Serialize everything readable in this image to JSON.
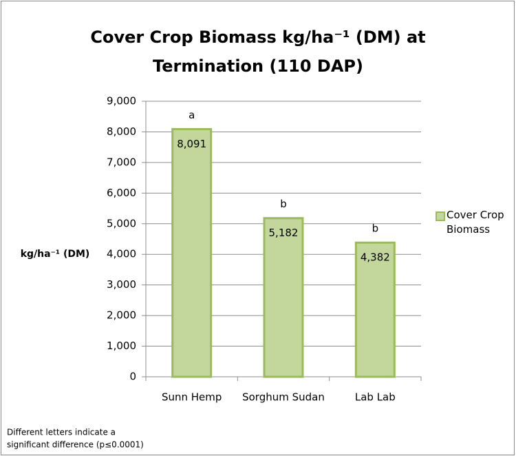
{
  "chart_data": {
    "type": "bar",
    "title": [
      "Cover Crop Biomass kg/ha⁻¹ (DM) at",
      "Termination (110 DAP)"
    ],
    "ylabel": "kg/ha⁻¹ (DM)",
    "categories": [
      "Sunn Hemp",
      "Sorghum Sudan",
      "Lab Lab"
    ],
    "series": [
      {
        "name": "Cover Crop Biomass",
        "color": "#9bbb59",
        "fill": "#c3d69b",
        "values": [
          8091,
          5182,
          4382
        ],
        "value_labels": [
          "8,091",
          "5,182",
          "4,382"
        ]
      }
    ],
    "annotations": [
      "a",
      "b",
      "b"
    ],
    "ylim": [
      0,
      9000
    ],
    "yticks": [
      0,
      {
        "value": 1000,
        "label": "1,000"
      },
      {
        "value": 2000,
        "label": "2,000"
      },
      {
        "value": 3000,
        "label": "3,000"
      },
      {
        "value": 4000,
        "label": "4,000"
      },
      {
        "value": 5000,
        "label": "5,000"
      },
      {
        "value": 6000,
        "label": "6,000"
      },
      {
        "value": 7000,
        "label": "7,000"
      },
      {
        "value": 8000,
        "label": "8,000"
      },
      {
        "value": 9000,
        "label": "9,000"
      }
    ],
    "grid": true,
    "legend": "right",
    "footnote": [
      "Different letters indicate a",
      "significant difference (p≤0.0001)"
    ]
  }
}
